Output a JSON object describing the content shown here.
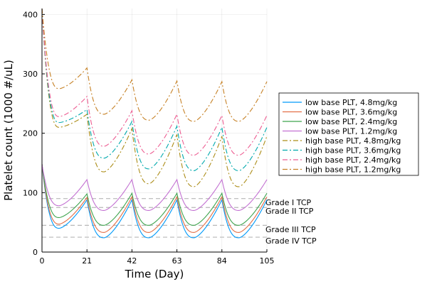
{
  "chart_data": {
    "type": "line",
    "title": "",
    "xlabel": "Time (Day)",
    "ylabel": "Platelet count (1000 #/uL)",
    "xlim": [
      0,
      105
    ],
    "ylim": [
      0,
      410
    ],
    "xticks": [
      0,
      21,
      42,
      63,
      84,
      105
    ],
    "yticks": [
      0,
      100,
      200,
      300,
      400
    ],
    "grid": true,
    "legend_position": "right",
    "series": [
      {
        "name": "low base PLT, 4.8mg/kg",
        "color": "#009AFA",
        "style": "solid",
        "start": 148,
        "troughs": [
          40,
          24,
          24,
          24,
          24
        ],
        "peaks": [
          88,
          88,
          88,
          88
        ]
      },
      {
        "name": "low base PLT, 3.6mg/kg",
        "color": "#E36F47",
        "style": "solid",
        "start": 148,
        "troughs": [
          47,
          33,
          33,
          33,
          33
        ],
        "peaks": [
          92,
          93,
          93,
          93
        ]
      },
      {
        "name": "low base PLT, 2.4mg/kg",
        "color": "#3EA44E",
        "style": "solid",
        "start": 148,
        "troughs": [
          58,
          45,
          45,
          45,
          45
        ],
        "peaks": [
          98,
          99,
          99,
          99
        ]
      },
      {
        "name": "low base PLT, 1.2mg/kg",
        "color": "#C371D2",
        "style": "solid",
        "start": 148,
        "troughs": [
          78,
          70,
          70,
          70,
          70
        ],
        "peaks": [
          122,
          122,
          122,
          122
        ]
      },
      {
        "name": "high base PLT, 4.8mg/kg",
        "color": "#AC8D18",
        "style": "dashdot",
        "start": 410,
        "troughs": [
          210,
          135,
          115,
          110,
          110
        ],
        "peaks": [
          232,
          208,
          198,
          195
        ]
      },
      {
        "name": "high base PLT, 3.6mg/kg",
        "color": "#00A9AD",
        "style": "dashdot",
        "start": 410,
        "troughs": [
          218,
          158,
          140,
          137,
          137
        ],
        "peaks": [
          240,
          220,
          212,
          210
        ]
      },
      {
        "name": "high base PLT, 2.4mg/kg",
        "color": "#ED5D92",
        "style": "dashdot",
        "start": 410,
        "troughs": [
          228,
          178,
          165,
          163,
          163
        ],
        "peaks": [
          262,
          238,
          232,
          230
        ]
      },
      {
        "name": "high base PLT, 1.2mg/kg",
        "color": "#C68125",
        "style": "dashdot",
        "start": 410,
        "troughs": [
          275,
          232,
          222,
          220,
          220
        ],
        "peaks": [
          310,
          290,
          288,
          287
        ]
      }
    ],
    "reference_lines": [
      {
        "label": "Grade I TCP",
        "y": 90
      },
      {
        "label": "Grade II TCP",
        "y": 75
      },
      {
        "label": "Grade III TCP",
        "y": 45
      },
      {
        "label": "Grade IV TCP",
        "y": 25
      }
    ]
  }
}
